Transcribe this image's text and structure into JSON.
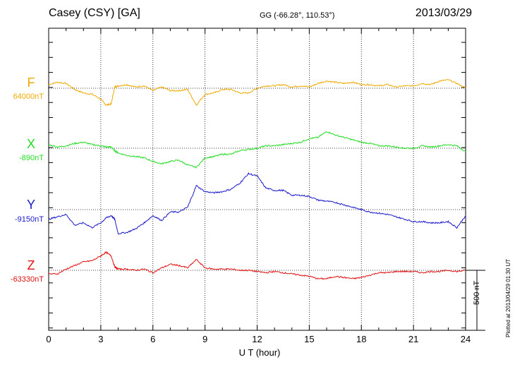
{
  "header": {
    "station": "Casey (CSY)  [GA]",
    "coords": "GG (-66.28°, 110.53°)",
    "date": "2013/03/29"
  },
  "footer_note": "Plotted at 2013/04/29 01:30 UT",
  "scale_bar": {
    "label": "500 nT",
    "value_nT": 500
  },
  "colors": {
    "F": "#f0a800",
    "X": "#22dd22",
    "Y": "#1a1acc",
    "Z": "#e01010"
  },
  "chart_data": {
    "type": "line",
    "title": "Casey (CSY)  [GA]",
    "xlabel": "U T (hour)",
    "ylabel": "",
    "xlim": [
      0,
      24
    ],
    "x_ticks": [
      "0",
      "3",
      "6",
      "9",
      "12",
      "15",
      "18",
      "21",
      "24"
    ],
    "grid": true,
    "offset_nT_per_band": 500,
    "series": [
      {
        "name": "F",
        "baseline_label": "64000nT",
        "baseline_nT": 64000,
        "x": [
          0,
          0.5,
          1,
          1.5,
          2,
          2.5,
          3,
          3.3,
          3.6,
          3.8,
          4,
          4.5,
          5,
          5.5,
          6,
          6.5,
          7,
          7.5,
          8,
          8.5,
          9,
          9.5,
          10,
          10.5,
          11,
          11.5,
          12,
          12.5,
          13,
          13.5,
          14,
          14.5,
          15,
          15.5,
          16,
          16.5,
          17,
          17.5,
          18,
          18.5,
          19,
          19.5,
          20,
          20.5,
          21,
          21.5,
          22,
          22.5,
          23,
          23.5,
          24
        ],
        "values": [
          30,
          50,
          40,
          -10,
          -40,
          -50,
          -90,
          -140,
          -130,
          10,
          20,
          30,
          10,
          20,
          -20,
          10,
          -20,
          -20,
          -10,
          -140,
          -50,
          -40,
          -10,
          -10,
          -40,
          -40,
          0,
          20,
          20,
          30,
          10,
          20,
          10,
          40,
          60,
          50,
          40,
          50,
          30,
          30,
          20,
          30,
          10,
          20,
          20,
          40,
          30,
          60,
          70,
          40,
          0
        ]
      },
      {
        "name": "X",
        "baseline_label": "-890nT",
        "baseline_nT": -890,
        "x": [
          0,
          0.5,
          1,
          1.5,
          2,
          2.5,
          3,
          3.3,
          3.6,
          3.8,
          4,
          4.5,
          5,
          5.5,
          6,
          6.5,
          7,
          7.5,
          8,
          8.5,
          9,
          9.5,
          10,
          10.5,
          11,
          11.5,
          12,
          12.5,
          13,
          13.5,
          14,
          14.5,
          15,
          15.5,
          16,
          16.5,
          17,
          17.5,
          18,
          18.5,
          19,
          19.5,
          20,
          20.5,
          21,
          21.5,
          22,
          22.5,
          23,
          23.5,
          24
        ],
        "values": [
          30,
          10,
          20,
          40,
          50,
          30,
          20,
          10,
          10,
          -20,
          -40,
          -60,
          -70,
          -80,
          -110,
          -130,
          -110,
          -100,
          -140,
          -160,
          -80,
          -70,
          -50,
          -50,
          -20,
          -10,
          0,
          20,
          20,
          30,
          40,
          50,
          80,
          90,
          140,
          110,
          90,
          70,
          50,
          40,
          20,
          20,
          10,
          0,
          0,
          20,
          10,
          20,
          30,
          20,
          -30
        ]
      },
      {
        "name": "Y",
        "baseline_label": "-9150nT",
        "baseline_nT": -9150,
        "x": [
          0,
          0.5,
          1,
          1.5,
          2,
          2.5,
          3,
          3.3,
          3.6,
          3.8,
          4,
          4.5,
          5,
          5.5,
          6,
          6.5,
          7,
          7.5,
          8,
          8.5,
          9,
          9.5,
          10,
          10.5,
          11,
          11.5,
          12,
          12.5,
          13,
          13.5,
          14,
          14.5,
          15,
          15.5,
          16,
          16.5,
          17,
          17.5,
          18,
          18.5,
          19,
          19.5,
          20,
          20.5,
          21,
          21.5,
          22,
          22.5,
          23,
          23.5,
          24
        ],
        "values": [
          -80,
          -60,
          -40,
          -130,
          -110,
          -150,
          -110,
          -70,
          -50,
          -80,
          -200,
          -190,
          -160,
          -110,
          -50,
          -90,
          -20,
          -20,
          20,
          200,
          150,
          140,
          150,
          170,
          220,
          300,
          280,
          180,
          160,
          160,
          120,
          120,
          110,
          80,
          70,
          60,
          40,
          20,
          0,
          -20,
          -30,
          -40,
          -60,
          -80,
          -100,
          -100,
          -110,
          -110,
          -100,
          -150,
          -50
        ]
      },
      {
        "name": "Z",
        "baseline_label": "-63330nT",
        "baseline_nT": -63330,
        "x": [
          0,
          0.5,
          1,
          1.5,
          2,
          2.5,
          3,
          3.3,
          3.6,
          3.8,
          4,
          4.5,
          5,
          5.5,
          6,
          6.5,
          7,
          7.5,
          8,
          8.5,
          9,
          9.5,
          10,
          10.5,
          11,
          11.5,
          12,
          12.5,
          13,
          13.5,
          14,
          14.5,
          15,
          15.5,
          16,
          16.5,
          17,
          17.5,
          18,
          18.5,
          19,
          19.5,
          20,
          20.5,
          21,
          21.5,
          22,
          22.5,
          23,
          23.5,
          24
        ],
        "values": [
          -30,
          -30,
          10,
          40,
          70,
          80,
          120,
          150,
          120,
          30,
          10,
          10,
          0,
          10,
          -20,
          20,
          50,
          40,
          20,
          90,
          20,
          10,
          10,
          10,
          0,
          0,
          -10,
          -20,
          -10,
          -20,
          -30,
          -40,
          -50,
          -70,
          -70,
          -50,
          -60,
          -70,
          -60,
          -40,
          -20,
          -20,
          -10,
          -10,
          -10,
          -20,
          -10,
          -10,
          0,
          -10,
          0
        ]
      }
    ]
  }
}
